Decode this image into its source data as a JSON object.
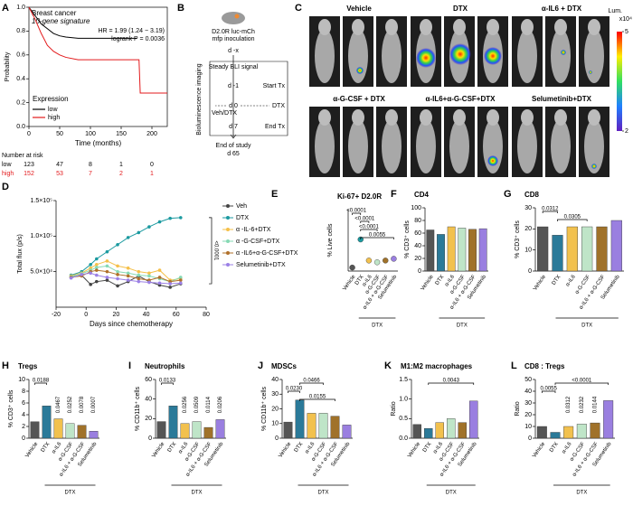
{
  "panel_labels": [
    "A",
    "B",
    "C",
    "D",
    "E",
    "F",
    "G",
    "H",
    "I",
    "J",
    "K",
    "L"
  ],
  "diagram": {
    "cells": "D2.0R luc-mCh",
    "site": "mfp inoculation",
    "start": "d -x",
    "baseline": "Steady BLI signal",
    "day_before": "d -1",
    "day_zero": "d 0",
    "treatment_start": "Start Tx",
    "arm_left": "Veh/DTX",
    "arm_right": "DTX",
    "day_end": "d 7",
    "treatment_end": "End Tx",
    "study_end": "End of study",
    "study_end_day": "d 65",
    "side_label": "Bioluminescence imaging"
  },
  "imaging": {
    "groups": [
      "Vehicle",
      "DTX",
      "α-IL6 + DTX",
      "α-G-CSF + DTX",
      "α-IL6+α-G-CSF+DTX",
      "Selumetinib+DTX"
    ],
    "colorbar": {
      "label": "Lum.",
      "unit": "x10⁴",
      "clim": [
        2,
        5
      ],
      "ticks": [
        5,
        2
      ]
    }
  },
  "chart_data": [
    {
      "type": "line",
      "title": "Breast cancer",
      "subtitle": "10-gene signature",
      "annotations": [
        "HR = 1.99 (1.24 − 3.19)",
        "logrank P = 0.0036"
      ],
      "xlabel": "Time (months)",
      "ylabel": "Probability",
      "xlim": [
        0,
        225
      ],
      "xticks": [
        0,
        50,
        100,
        150,
        200
      ],
      "ylim": [
        0,
        1
      ],
      "yticks": [
        {
          "value": 0,
          "label": "0.0"
        },
        {
          "value": 0.2,
          "label": "0.2"
        },
        {
          "value": 0.4,
          "label": "0.4"
        },
        {
          "value": 0.6,
          "label": "0.6"
        },
        {
          "value": 0.8,
          "label": "0.8"
        },
        {
          "value": 1,
          "label": "1.0"
        }
      ],
      "legend": "lower left",
      "legend_title": "Expression",
      "series": [
        {
          "name": "low",
          "color": "#000000",
          "x": [
            0,
            10,
            20,
            30,
            40,
            50,
            60,
            80,
            100,
            150,
            175
          ],
          "values": [
            1,
            0.93,
            0.86,
            0.82,
            0.78,
            0.76,
            0.75,
            0.74,
            0.74,
            0.74,
            0.74
          ]
        },
        {
          "name": "high",
          "color": "#e31a1c",
          "x": [
            0,
            10,
            20,
            30,
            40,
            50,
            60,
            80,
            100,
            150,
            179,
            181,
            225
          ],
          "values": [
            1,
            0.9,
            0.78,
            0.68,
            0.63,
            0.6,
            0.58,
            0.56,
            0.56,
            0.56,
            0.56,
            0.28,
            0.28
          ]
        }
      ],
      "risk_table": {
        "title": "Number at risk",
        "rows": [
          {
            "name": "low",
            "color": "#000000",
            "counts": [
              123,
              47,
              8,
              1,
              0
            ]
          },
          {
            "name": "high",
            "color": "#e31a1c",
            "counts": [
              152,
              53,
              7,
              2,
              1
            ]
          }
        ]
      }
    },
    {
      "type": "line",
      "xlabel": "Days since chemotherapy",
      "ylabel": "Total flux (p/s)",
      "xlim": [
        -20,
        80
      ],
      "xticks": [
        -20,
        0,
        20,
        40,
        60,
        80
      ],
      "ylim": [
        0,
        150000
      ],
      "yticks": [
        {
          "value": 50000,
          "label": "5.0×10⁴"
        },
        {
          "value": 100000,
          "label": "1.0×10⁵"
        },
        {
          "value": 150000,
          "label": "1.5×10⁵"
        }
      ],
      "markers": true,
      "legend": "right",
      "annotations": [
        "<0.0001"
      ],
      "x": [
        -10,
        -3,
        3,
        7,
        14,
        21,
        28,
        35,
        42,
        49,
        56,
        63
      ],
      "series": [
        {
          "name": "Veh",
          "color": "#444444",
          "values": [
            42000,
            45000,
            32000,
            36000,
            38000,
            30000,
            36000,
            44000,
            36000,
            31000,
            28000,
            33000
          ]
        },
        {
          "name": "DTX",
          "color": "#1b9aa0",
          "values": [
            45000,
            50000,
            60000,
            68000,
            78000,
            88000,
            98000,
            105000,
            113000,
            120000,
            125000,
            126000
          ]
        },
        {
          "name": "α -IL-6+DTX",
          "color": "#f5c04a",
          "values": [
            44000,
            48000,
            55000,
            60000,
            65000,
            58000,
            55000,
            50000,
            48000,
            52000,
            38000,
            40000
          ]
        },
        {
          "name": "α -G-CSF+DTX",
          "color": "#86d9b4",
          "values": [
            43000,
            47000,
            52000,
            56000,
            58000,
            50000,
            48000,
            45000,
            44000,
            40000,
            36000,
            42000
          ]
        },
        {
          "name": "α -IL6+α-G-CSF+DTX",
          "color": "#b0702a",
          "values": [
            42000,
            44000,
            50000,
            52000,
            50000,
            46000,
            44000,
            40000,
            38000,
            42000,
            36000,
            38000
          ]
        },
        {
          "name": "Selumetinib+DTX",
          "color": "#9b80e6",
          "values": [
            41000,
            46000,
            48000,
            45000,
            42000,
            40000,
            38000,
            36000,
            35000,
            34000,
            33000,
            34000
          ]
        }
      ]
    },
    {
      "type": "dot",
      "title": "Ki-67+ D2.0R",
      "ylabel": "% Live cells",
      "ylim": [
        0,
        35
      ],
      "categories": [
        "Vehicle",
        "DTX",
        "α-IL6",
        "α-G-CSF",
        "α-IL6 + α-G-CSF",
        "Selumetinib"
      ],
      "group_label": "DTX",
      "colors": [
        "#555555",
        "#1b9aa0",
        "#f2c14e",
        "#bfe5c8",
        "#a0722a",
        "#9a7fe0"
      ],
      "values": [
        2,
        18,
        6,
        5,
        6,
        7
      ],
      "pvalues": [
        "<0.0001",
        "<0.0001",
        "<0.0001",
        "0.0055"
      ]
    },
    {
      "type": "bar",
      "title": "CD4",
      "ylabel": "% CD3⁺ cells",
      "ylim": [
        0,
        100
      ],
      "yticks": [
        0,
        20,
        40,
        60,
        80,
        100
      ],
      "categories": [
        "Vehicle",
        "DTX",
        "α-IL6",
        "α-G-CSF",
        "α-IL6 + α-G-CSF",
        "Selumetinib"
      ],
      "group_label": "DTX",
      "colors": [
        "#555555",
        "#2b7a99",
        "#f2c14e",
        "#bfe5c8",
        "#a0722a",
        "#9a7fe0"
      ],
      "values": [
        65,
        58,
        70,
        68,
        66,
        67
      ],
      "pvalues": []
    },
    {
      "type": "bar",
      "title": "CD8",
      "ylabel": "% CD3⁺ cells",
      "ylim": [
        0,
        30
      ],
      "yticks": [
        0,
        10,
        20,
        30
      ],
      "categories": [
        "Vehicle",
        "DTX",
        "α-IL6",
        "α-G-CSF",
        "α-IL6 + α-G-CSF",
        "Selumetinib"
      ],
      "group_label": "DTX",
      "colors": [
        "#555555",
        "#2b7a99",
        "#f2c14e",
        "#bfe5c8",
        "#a0722a",
        "#9a7fe0"
      ],
      "values": [
        21,
        17,
        21,
        21,
        21,
        24
      ],
      "pvalues": [
        "0.0312",
        "0.0305"
      ]
    },
    {
      "type": "bar",
      "title": "Tregs",
      "ylabel": "% CD3⁺ cells",
      "ylim": [
        0,
        10
      ],
      "yticks": [
        0,
        2,
        4,
        6,
        8,
        10
      ],
      "categories": [
        "Vehicle",
        "DTX",
        "α-IL6",
        "α-G-CSF",
        "α-IL6 + α-G-CSF",
        "Selumetinib"
      ],
      "group_label": "DTX",
      "colors": [
        "#555555",
        "#2b7a99",
        "#f2c14e",
        "#bfe5c8",
        "#a0722a",
        "#9a7fe0"
      ],
      "values": [
        2.8,
        5.5,
        3.3,
        2.5,
        2.2,
        1.2
      ],
      "pvalues": [
        "0.0188",
        "0.0467",
        "0.0252",
        "0.0078",
        "0.0007"
      ]
    },
    {
      "type": "bar",
      "title": "Neutrophils",
      "ylabel": "% CD11b⁺ cells",
      "ylim": [
        0,
        60
      ],
      "yticks": [
        0,
        20,
        40,
        60
      ],
      "categories": [
        "Vehicle",
        "DTX",
        "α-IL6",
        "α-G-CSF",
        "α-IL6 + α-G-CSF",
        "Selumetinib"
      ],
      "group_label": "DTX",
      "colors": [
        "#555555",
        "#2b7a99",
        "#f2c14e",
        "#bfe5c8",
        "#a0722a",
        "#9a7fe0"
      ],
      "values": [
        17,
        33,
        15,
        17,
        11,
        19
      ],
      "pvalues": [
        "0.0133",
        "0.0256",
        "0.0509",
        "0.0114",
        "0.0206"
      ]
    },
    {
      "type": "bar",
      "title": "MDSCs",
      "ylabel": "% CD11b⁺ cells",
      "ylim": [
        0,
        40
      ],
      "yticks": [
        0,
        10,
        20,
        30,
        40
      ],
      "categories": [
        "Vehicle",
        "DTX",
        "α-IL6",
        "α-G-CSF",
        "α-IL6 + α-G-CSF",
        "Selumetinib"
      ],
      "group_label": "DTX",
      "colors": [
        "#555555",
        "#2b7a99",
        "#f2c14e",
        "#bfe5c8",
        "#a0722a",
        "#9a7fe0"
      ],
      "values": [
        11,
        26,
        17,
        17,
        15,
        9
      ],
      "pvalues": [
        "0.0466",
        "0.0230",
        "0.0155"
      ]
    },
    {
      "type": "bar",
      "title": "M1:M2 macrophages",
      "ylabel": "Ratio",
      "ylim": [
        0,
        1.5
      ],
      "yticks": [
        {
          "value": 0,
          "label": "0.0"
        },
        {
          "value": 0.5,
          "label": "0.5"
        },
        {
          "value": 1,
          "label": "1.0"
        },
        {
          "value": 1.5,
          "label": "1.5"
        }
      ],
      "categories": [
        "Vehicle",
        "DTX",
        "α-IL6",
        "α-G-CSF",
        "α-IL6 + α-G-CSF",
        "Selumetinib"
      ],
      "group_label": "DTX",
      "colors": [
        "#555555",
        "#2b7a99",
        "#f2c14e",
        "#bfe5c8",
        "#a0722a",
        "#9a7fe0"
      ],
      "values": [
        0.35,
        0.25,
        0.4,
        0.5,
        0.4,
        0.95
      ],
      "pvalues": [
        "0.0043"
      ]
    },
    {
      "type": "bar",
      "title": "CD8 : Tregs",
      "ylabel": "Ratio",
      "ylim": [
        0,
        50
      ],
      "yticks": [
        0,
        10,
        20,
        30,
        40,
        50
      ],
      "categories": [
        "Vehicle",
        "DTX",
        "α-IL6",
        "α-G-CSF",
        "α-IL6 + α-G-CSF",
        "Selumetinib"
      ],
      "group_label": "DTX",
      "colors": [
        "#555555",
        "#2b7a99",
        "#f2c14e",
        "#bfe5c8",
        "#a0722a",
        "#9a7fe0"
      ],
      "values": [
        10,
        5,
        10,
        12,
        13,
        32
      ],
      "pvalues": [
        "<0.0001",
        "0.0055",
        "0.0312",
        "0.0232",
        "0.0144"
      ]
    }
  ]
}
